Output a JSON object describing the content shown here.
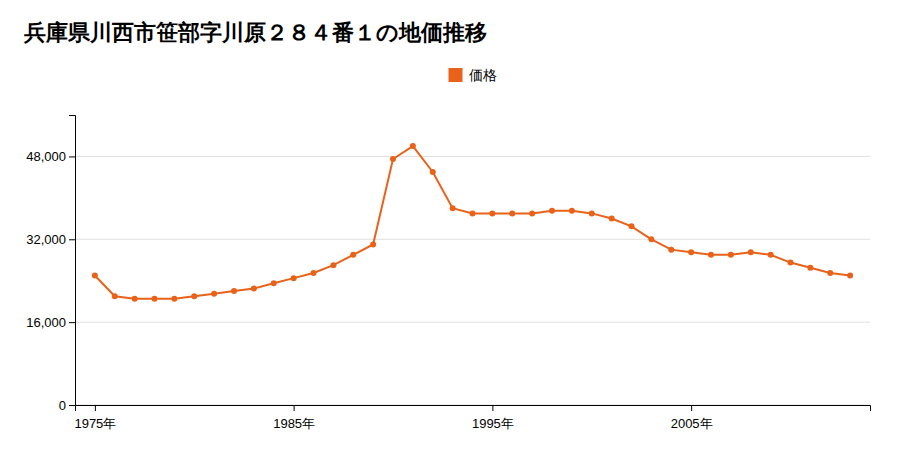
{
  "chart_data": {
    "type": "line",
    "title": "兵庫県川西市笹部字川原２８４番１の地価推移",
    "x": [
      1975,
      1976,
      1977,
      1978,
      1979,
      1980,
      1981,
      1982,
      1983,
      1984,
      1985,
      1986,
      1987,
      1988,
      1989,
      1990,
      1991,
      1992,
      1993,
      1994,
      1995,
      1996,
      1997,
      1998,
      1999,
      2000,
      2001,
      2002,
      2003,
      2004,
      2005,
      2006,
      2007,
      2008,
      2009,
      2010,
      2011,
      2012,
      2013
    ],
    "series": [
      {
        "name": "価格",
        "color": "#e8621a",
        "marker": "circle",
        "values": [
          25000,
          21000,
          20500,
          20500,
          20500,
          21000,
          21500,
          22000,
          22500,
          23500,
          24500,
          25500,
          27000,
          29000,
          31000,
          47500,
          50000,
          45000,
          38000,
          37000,
          37000,
          37000,
          37000,
          37500,
          37500,
          37000,
          36000,
          34500,
          32000,
          30000,
          29500,
          29000,
          29000,
          29500,
          29000,
          27500,
          26500,
          25500,
          25000
        ]
      }
    ],
    "xlim": [
      1974,
      2014
    ],
    "xticks": [
      {
        "value": 1975,
        "label": "1975年"
      },
      {
        "value": 1985,
        "label": "1985年"
      },
      {
        "value": 1995,
        "label": "1995年"
      },
      {
        "value": 2005,
        "label": "2005年"
      }
    ],
    "ylim": [
      0,
      56000
    ],
    "yticks": [
      0,
      {
        "value": 16000,
        "label": "16,000"
      },
      {
        "value": 32000,
        "label": "32,000"
      },
      {
        "value": 48000,
        "label": "48,000"
      }
    ],
    "grid": true,
    "legend": "top"
  }
}
